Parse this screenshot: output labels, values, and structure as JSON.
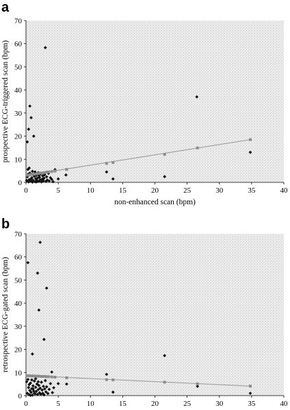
{
  "chart_data": [
    {
      "type": "scatter",
      "panel": "a",
      "xlabel": "non-enhanced scan (bpm)",
      "ylabel": "prospective ECG-triggered scan (bpm)",
      "xlim": [
        0,
        40
      ],
      "ylim": [
        0,
        70
      ],
      "xticks": [
        0,
        5,
        10,
        15,
        20,
        25,
        30,
        35,
        40
      ],
      "yticks": [
        0,
        10,
        20,
        30,
        40,
        50,
        60,
        70
      ],
      "grid": false,
      "background": "stippled light gray",
      "series": [
        {
          "marker": "diamond",
          "color": "#111111",
          "points": [
            [
              0.2,
              17.5
            ],
            [
              0.4,
              23
            ],
            [
              0.6,
              33
            ],
            [
              0.8,
              28
            ],
            [
              1.2,
              20
            ],
            [
              3.0,
              58.3
            ],
            [
              26.5,
              37
            ],
            [
              34.8,
              13
            ],
            [
              12.5,
              4.5
            ],
            [
              13.5,
              1.5
            ],
            [
              21.5,
              2.5
            ],
            [
              6.2,
              3.2
            ],
            [
              4.5,
              5.5
            ],
            [
              5.0,
              1.5
            ],
            [
              0.3,
              3.5
            ],
            [
              0.5,
              1.2
            ],
            [
              0.7,
              0.6
            ],
            [
              0.9,
              2.0
            ],
            [
              1.0,
              4.8
            ],
            [
              1.1,
              0.9
            ],
            [
              1.3,
              2.6
            ],
            [
              1.4,
              0.3
            ],
            [
              1.5,
              1.6
            ],
            [
              1.6,
              3.0
            ],
            [
              1.7,
              0.8
            ],
            [
              1.8,
              1.9
            ],
            [
              1.9,
              4.2
            ],
            [
              2.0,
              0.5
            ],
            [
              2.1,
              2.2
            ],
            [
              2.2,
              1.1
            ],
            [
              2.3,
              3.6
            ],
            [
              2.4,
              0.2
            ],
            [
              2.5,
              1.4
            ],
            [
              2.6,
              2.8
            ],
            [
              2.7,
              0.7
            ],
            [
              2.8,
              1.8
            ],
            [
              2.9,
              3.3
            ],
            [
              3.1,
              0.4
            ],
            [
              3.2,
              2.4
            ],
            [
              3.3,
              1.0
            ],
            [
              3.5,
              3.9
            ],
            [
              3.6,
              0.6
            ],
            [
              3.8,
              2.0
            ],
            [
              4.0,
              1.3
            ],
            [
              4.2,
              0.3
            ],
            [
              0.1,
              0.8
            ],
            [
              0.2,
              2.4
            ],
            [
              0.4,
              0.2
            ],
            [
              0.6,
              4.0
            ],
            [
              0.8,
              1.5
            ],
            [
              1.0,
              0.1
            ],
            [
              1.2,
              3.2
            ],
            [
              1.4,
              4.5
            ],
            [
              1.6,
              0.2
            ],
            [
              1.8,
              0.4
            ],
            [
              2.0,
              3.0
            ],
            [
              2.2,
              4.0
            ],
            [
              0.3,
              5.6
            ],
            [
              0.5,
              6.2
            ]
          ]
        },
        {
          "marker": "square",
          "color": "#8c8c8c",
          "points": [
            [
              0.2,
              3.1
            ],
            [
              0.5,
              3.2
            ],
            [
              0.8,
              3.4
            ],
            [
              1.1,
              3.5
            ],
            [
              1.4,
              3.6
            ],
            [
              1.7,
              3.7
            ],
            [
              2.0,
              3.9
            ],
            [
              2.3,
              4.0
            ],
            [
              2.6,
              4.1
            ],
            [
              2.9,
              4.2
            ],
            [
              3.2,
              4.4
            ],
            [
              3.5,
              4.5
            ],
            [
              4.0,
              4.7
            ],
            [
              4.5,
              4.9
            ],
            [
              6.3,
              5.6
            ],
            [
              12.5,
              8.2
            ],
            [
              13.5,
              8.6
            ],
            [
              21.5,
              12.1
            ],
            [
              26.6,
              14.9
            ],
            [
              34.8,
              18.5
            ]
          ]
        }
      ],
      "fit_line": {
        "x": [
          0,
          34.8
        ],
        "y": [
          3.0,
          18.5
        ]
      }
    },
    {
      "type": "scatter",
      "panel": "b",
      "xlabel": "non-enhanced scan (bpm)",
      "ylabel": "retrospective ECG-gated scan (bpm)",
      "xlim": [
        0,
        40
      ],
      "ylim": [
        0,
        70
      ],
      "xticks": [
        0,
        5,
        10,
        15,
        20,
        25,
        30,
        35,
        40
      ],
      "yticks": [
        0,
        10,
        20,
        30,
        40,
        50,
        60,
        70
      ],
      "grid": false,
      "background": "stippled light gray",
      "series": [
        {
          "marker": "diamond",
          "color": "#111111",
          "points": [
            [
              0.3,
              57.5
            ],
            [
              1.8,
              53
            ],
            [
              2.2,
              66.3
            ],
            [
              2.0,
              37
            ],
            [
              3.2,
              46.5
            ],
            [
              2.8,
              24.3
            ],
            [
              1.0,
              18
            ],
            [
              4.0,
              10.2
            ],
            [
              12.5,
              9.2
            ],
            [
              13.5,
              1.5
            ],
            [
              21.5,
              17.3
            ],
            [
              26.6,
              4.0
            ],
            [
              34.8,
              1.0
            ],
            [
              6.3,
              5.0
            ],
            [
              5.0,
              5.2
            ],
            [
              0.2,
              1.0
            ],
            [
              0.4,
              3.5
            ],
            [
              0.5,
              0.4
            ],
            [
              0.6,
              2.2
            ],
            [
              0.7,
              5.4
            ],
            [
              0.8,
              1.4
            ],
            [
              0.9,
              3.0
            ],
            [
              1.0,
              0.2
            ],
            [
              1.1,
              4.2
            ],
            [
              1.2,
              2.0
            ],
            [
              1.3,
              6.3
            ],
            [
              1.4,
              0.8
            ],
            [
              1.5,
              3.6
            ],
            [
              1.6,
              1.8
            ],
            [
              1.7,
              5.0
            ],
            [
              1.8,
              0.5
            ],
            [
              1.9,
              2.6
            ],
            [
              2.0,
              4.4
            ],
            [
              2.1,
              1.2
            ],
            [
              2.2,
              3.2
            ],
            [
              2.3,
              0.6
            ],
            [
              2.4,
              5.8
            ],
            [
              2.5,
              2.4
            ],
            [
              2.6,
              1.0
            ],
            [
              2.7,
              4.0
            ],
            [
              2.8,
              0.3
            ],
            [
              2.9,
              2.9
            ],
            [
              3.0,
              6.5
            ],
            [
              3.1,
              1.6
            ],
            [
              3.2,
              3.8
            ],
            [
              3.4,
              0.9
            ],
            [
              3.6,
              2.7
            ],
            [
              3.8,
              5.2
            ],
            [
              4.1,
              1.3
            ],
            [
              4.3,
              3.4
            ],
            [
              0.1,
              6.0
            ],
            [
              0.3,
              7.0
            ],
            [
              0.5,
              4.8
            ],
            [
              0.7,
              0.1
            ],
            [
              0.9,
              6.8
            ],
            [
              1.1,
              2.9
            ],
            [
              1.3,
              1.0
            ],
            [
              1.5,
              7.3
            ],
            [
              1.9,
              6.0
            ]
          ]
        },
        {
          "marker": "square",
          "color": "#8c8c8c",
          "points": [
            [
              0.2,
              8.6
            ],
            [
              0.5,
              8.6
            ],
            [
              0.8,
              8.5
            ],
            [
              1.1,
              8.5
            ],
            [
              1.4,
              8.4
            ],
            [
              1.7,
              8.4
            ],
            [
              2.0,
              8.4
            ],
            [
              2.3,
              8.3
            ],
            [
              2.6,
              8.3
            ],
            [
              2.9,
              8.3
            ],
            [
              3.2,
              8.2
            ],
            [
              3.5,
              8.2
            ],
            [
              4.0,
              8.1
            ],
            [
              4.5,
              8.0
            ],
            [
              6.3,
              7.7
            ],
            [
              12.5,
              6.9
            ],
            [
              13.5,
              6.8
            ],
            [
              21.5,
              5.8
            ],
            [
              26.6,
              5.1
            ],
            [
              34.8,
              4.1
            ]
          ]
        }
      ],
      "fit_line": {
        "x": [
          0,
          34.8
        ],
        "y": [
          8.7,
          4.1
        ]
      }
    }
  ]
}
